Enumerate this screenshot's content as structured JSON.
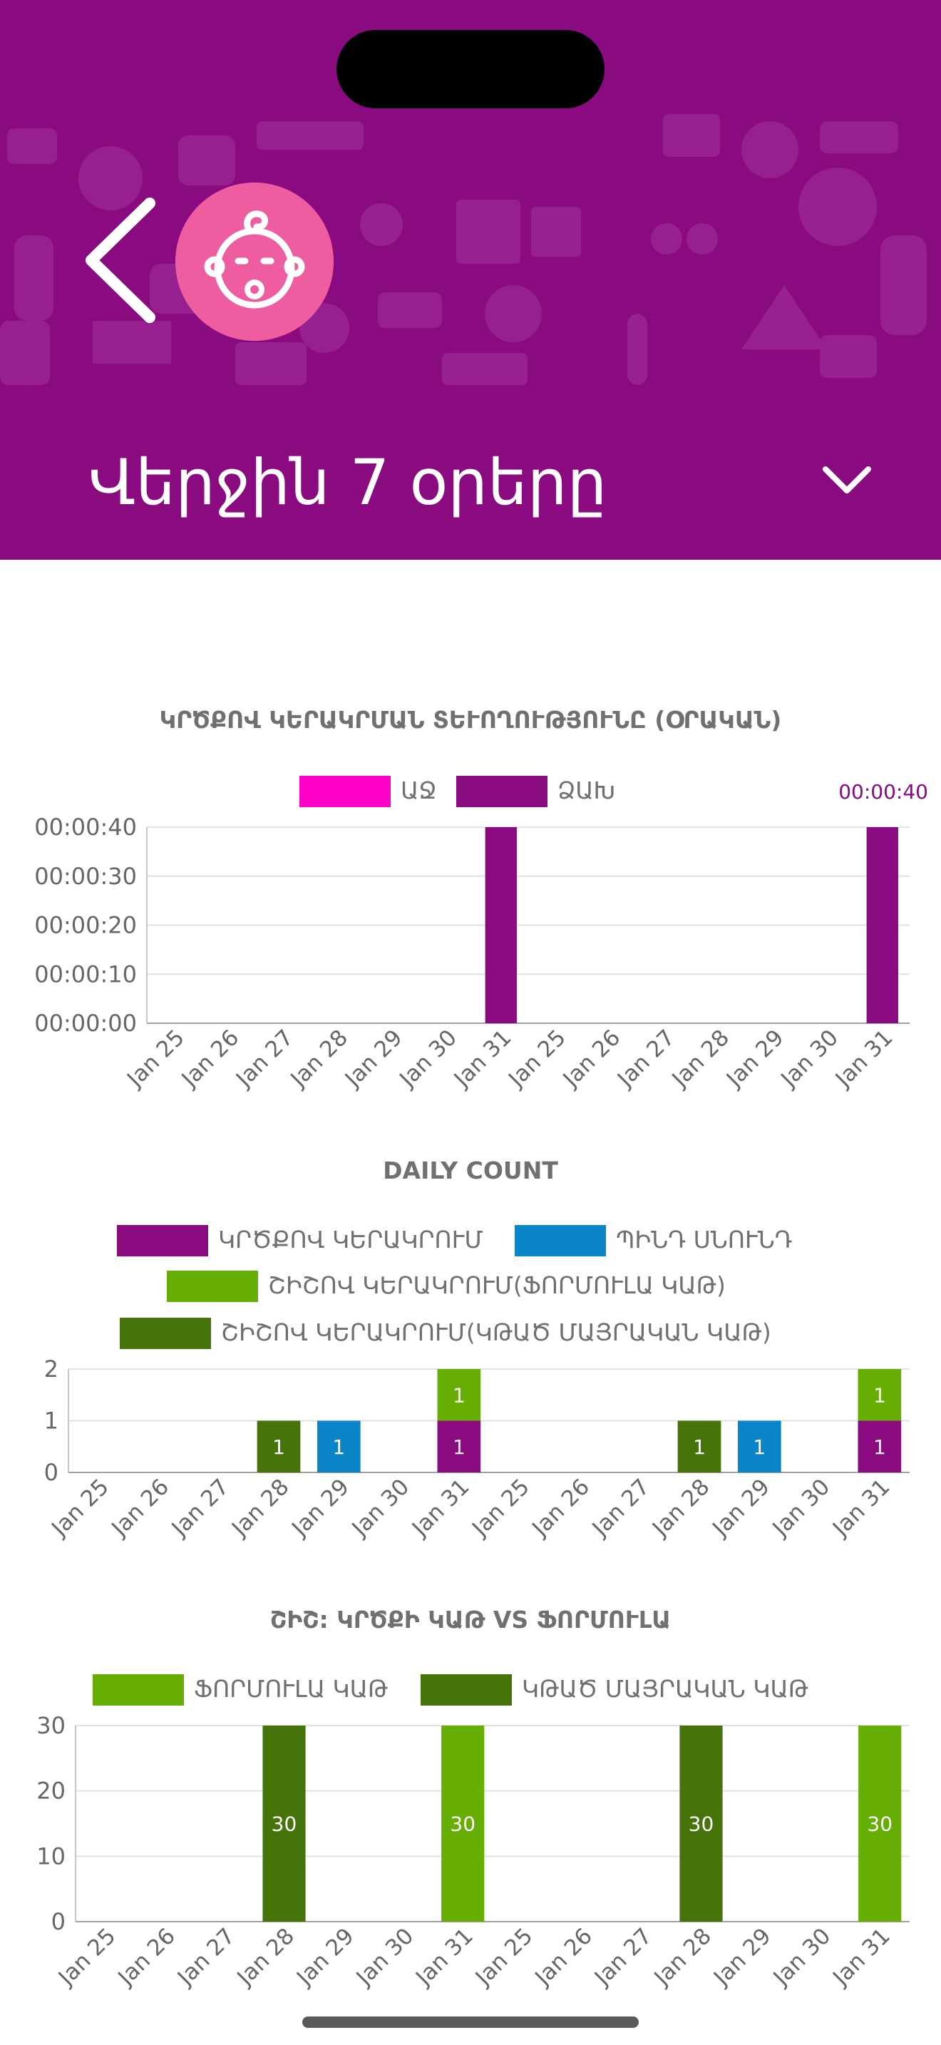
{
  "header": {
    "range_label": "Վերջին 7 օրերը",
    "icons": {
      "back": "chevron-left-icon",
      "avatar": "baby-face-icon",
      "dropdown": "chevron-down-icon"
    },
    "colors": {
      "background": "#8a0a80",
      "avatar": "#ee5d9f"
    }
  },
  "chart_data": [
    {
      "type": "bar",
      "title": "ԿՐԾՔՈՎ ԿԵՐԱԿՐՄԱՆ ՏԵՒՈՂՈՒԹՅՈՒՆԸ (ՕՐԱԿԱՆ)",
      "categories": [
        "Jan 25",
        "Jan 26",
        "Jan 27",
        "Jan 28",
        "Jan 29",
        "Jan 30",
        "Jan 31",
        "Jan 25",
        "Jan 26",
        "Jan 27",
        "Jan 28",
        "Jan 29",
        "Jan 30",
        "Jan 31"
      ],
      "series": [
        {
          "name": "ԱՋ",
          "color": "#ff00c8",
          "values": [
            0,
            0,
            0,
            0,
            0,
            0,
            0,
            0,
            0,
            0,
            0,
            0,
            0,
            0
          ]
        },
        {
          "name": "ՁԱԽ",
          "color": "#8a0a80",
          "values": [
            0,
            0,
            0,
            0,
            0,
            0,
            40,
            0,
            0,
            0,
            0,
            0,
            0,
            40
          ]
        }
      ],
      "y_unit": "seconds",
      "ylim": [
        0,
        40
      ],
      "yticks": [
        "00:00:00",
        "00:00:10",
        "00:00:20",
        "00:00:30",
        "00:00:40"
      ],
      "tooltip": "00:00:40",
      "grid": true,
      "legend": "top"
    },
    {
      "type": "bar",
      "stacked": true,
      "title": "DAILY COUNT",
      "categories": [
        "Jan 25",
        "Jan 26",
        "Jan 27",
        "Jan 28",
        "Jan 29",
        "Jan 30",
        "Jan 31",
        "Jan 25",
        "Jan 26",
        "Jan 27",
        "Jan 28",
        "Jan 29",
        "Jan 30",
        "Jan 31"
      ],
      "series": [
        {
          "name": "ԿՐԾՔՈՎ ԿԵՐԱԿՐՈՒՄ",
          "color": "#8a0a80",
          "values": [
            0,
            0,
            0,
            0,
            0,
            0,
            1,
            0,
            0,
            0,
            0,
            0,
            0,
            1
          ]
        },
        {
          "name": "ՊԻՆԴ ՍՆՈՒՆԴ",
          "color": "#0a85c8",
          "values": [
            0,
            0,
            0,
            0,
            1,
            0,
            0,
            0,
            0,
            0,
            0,
            1,
            0,
            0
          ]
        },
        {
          "name": "ՇԻՇՈՎ ԿԵՐԱԿՐՈՒՄ(ՖՈՐՄՈՒԼԱ ԿԱԹ)",
          "color": "#66ad04",
          "values": [
            0,
            0,
            0,
            0,
            0,
            0,
            1,
            0,
            0,
            0,
            0,
            0,
            0,
            1
          ]
        },
        {
          "name": "ՇԻՇՈՎ ԿԵՐԱԿՐՈՒՄ(ԿԹԱԾ ՄԱՅՐԱԿԱՆ ԿԱԹ)",
          "color": "#46730a",
          "values": [
            0,
            0,
            0,
            1,
            0,
            0,
            0,
            0,
            0,
            0,
            1,
            0,
            0,
            0
          ]
        }
      ],
      "ylim": [
        0,
        2
      ],
      "yticks": [
        "0",
        "1",
        "2"
      ],
      "grid": true,
      "legend": "top"
    },
    {
      "type": "bar",
      "title": "ՇԻՇ: ԿՐԾՔԻ ԿԱԹ VS ՖՈՐՄՈՒԼԱ",
      "categories": [
        "Jan 25",
        "Jan 26",
        "Jan 27",
        "Jan 28",
        "Jan 29",
        "Jan 30",
        "Jan 31",
        "Jan 25",
        "Jan 26",
        "Jan 27",
        "Jan 28",
        "Jan 29",
        "Jan 30",
        "Jan 31"
      ],
      "series": [
        {
          "name": "ՖՈՐՄՈՒԼԱ ԿԱԹ",
          "color": "#66ad04",
          "values": [
            0,
            0,
            0,
            0,
            0,
            0,
            30,
            0,
            0,
            0,
            0,
            0,
            0,
            30
          ]
        },
        {
          "name": "ԿԹԱԾ ՄԱՅՐԱԿԱՆ ԿԱԹ",
          "color": "#46730a",
          "values": [
            0,
            0,
            0,
            30,
            0,
            0,
            0,
            0,
            0,
            0,
            30,
            0,
            0,
            0
          ]
        }
      ],
      "ylim": [
        0,
        30
      ],
      "yticks": [
        "0",
        "10",
        "20",
        "30"
      ],
      "grid": true,
      "legend": "top"
    }
  ]
}
